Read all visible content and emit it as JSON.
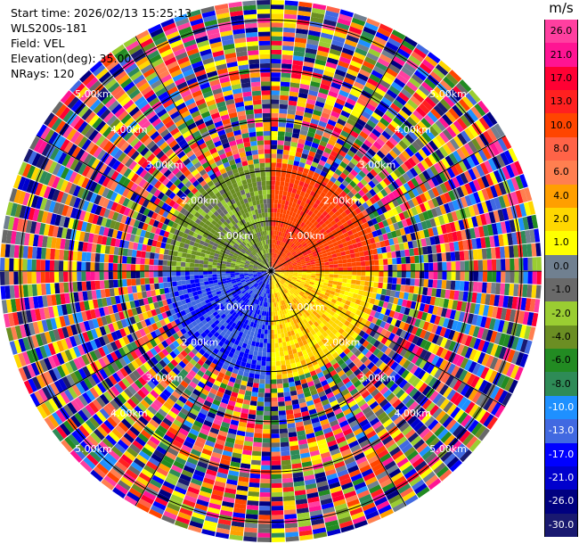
{
  "header": {
    "start_time": "Start time: 2026/02/13 15:25:13",
    "instrument": "WLS200s-181",
    "field": "Field: VEL",
    "elevation": "Elevation(deg): 35.00",
    "nrays": "NRays: 120"
  },
  "colorbar": {
    "unit": "m/s",
    "labels": [
      "26.0",
      "21.0",
      "17.0",
      "13.0",
      "10.0",
      "8.0",
      "6.0",
      "4.0",
      "2.0",
      "1.0",
      "0.0",
      "-1.0",
      "-2.0",
      "-4.0",
      "-6.0",
      "-8.0",
      "-10.0",
      "-13.0",
      "-17.0",
      "-21.0",
      "-26.0",
      "-30.0"
    ],
    "colors": [
      "#ff3fa0",
      "#ff1493",
      "#ff0033",
      "#ff2020",
      "#ff4500",
      "#ff6347",
      "#ff7f50",
      "#ff9f00",
      "#ffd700",
      "#ffff00",
      "#708090",
      "#696969",
      "#9acd32",
      "#6b8e23",
      "#228b22",
      "#2e8b57",
      "#1e90ff",
      "#4169e1",
      "#0000ff",
      "#0000cd",
      "#000080",
      "#191970"
    ]
  },
  "chart_data": {
    "type": "ppi",
    "field": "VEL",
    "units": "m/s",
    "nrays": 120,
    "elevation_deg": 35.0,
    "range_rings_km": [
      1.0,
      2.0,
      3.0,
      4.0,
      5.0
    ],
    "ring_labels": [
      "1.00km",
      "2.00km",
      "3.00km",
      "4.00km",
      "5.00km"
    ],
    "max_range_km": 5.4,
    "valid_range_km": 2.1,
    "velocity_sectors": [
      {
        "azimuth_start": 0,
        "azimuth_end": 90,
        "velocity": 12
      },
      {
        "azimuth_start": 90,
        "azimuth_end": 180,
        "velocity": 3
      },
      {
        "azimuth_start": 180,
        "azimuth_end": 270,
        "velocity": -13
      },
      {
        "azimuth_start": 270,
        "azimuth_end": 360,
        "velocity": -2
      }
    ]
  }
}
